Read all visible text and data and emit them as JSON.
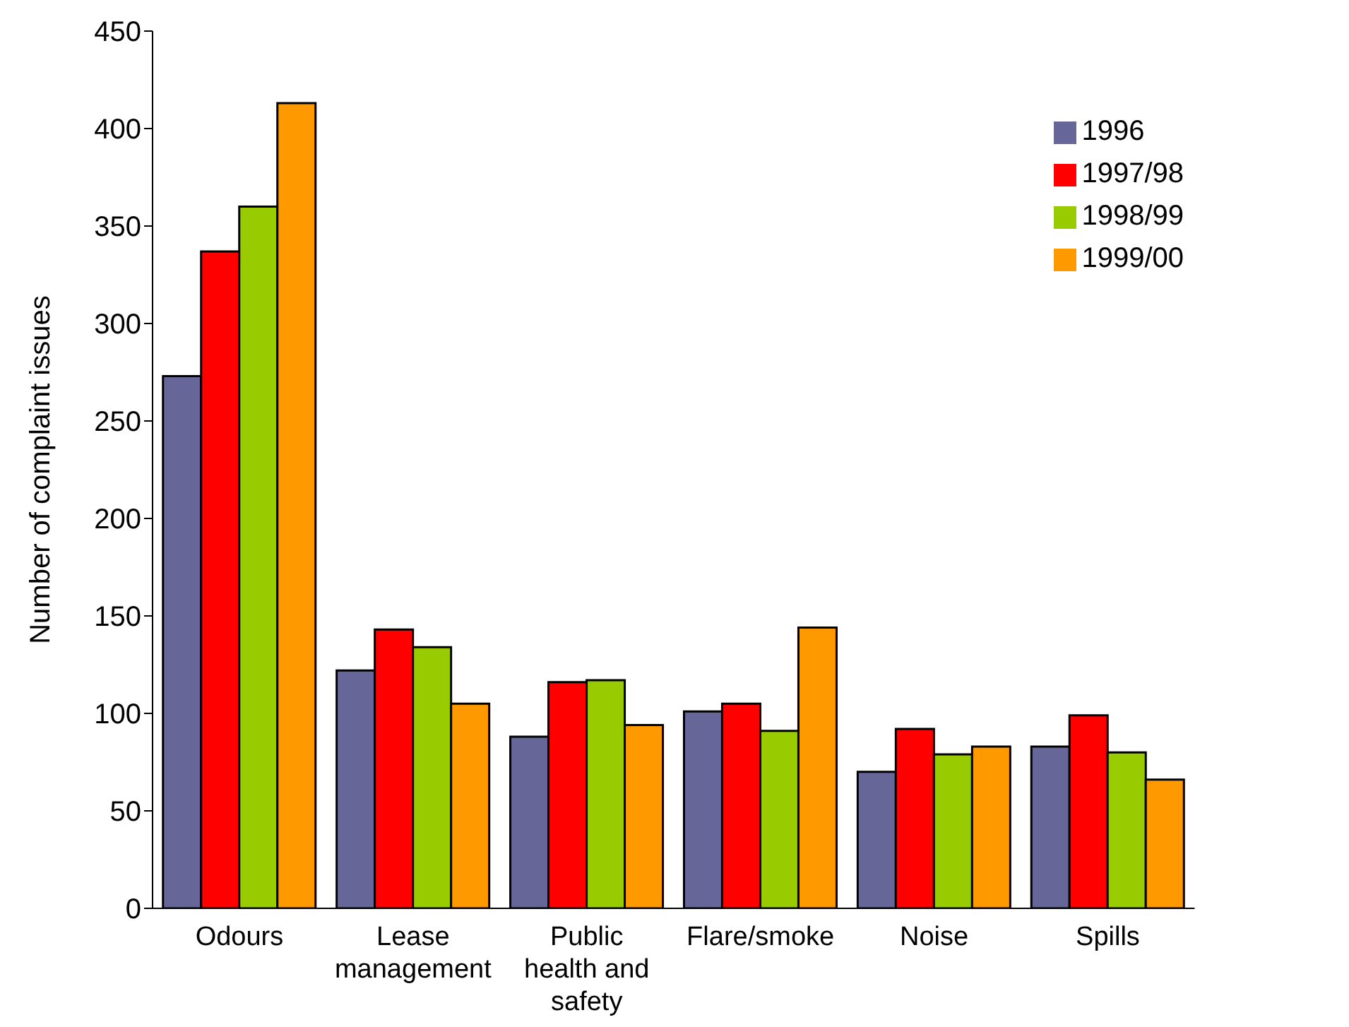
{
  "chart_data": {
    "type": "bar",
    "ylabel": "Number of complaint issues",
    "categories": [
      "Odours",
      "Lease management",
      "Public health and safety",
      "Flare/smoke",
      "Noise",
      "Spills"
    ],
    "series": [
      {
        "name": "1996",
        "color": "#666699",
        "values": [
          273,
          122,
          88,
          101,
          70,
          83
        ]
      },
      {
        "name": "1997/98",
        "color": "#ff0000",
        "values": [
          337,
          143,
          116,
          105,
          92,
          99
        ]
      },
      {
        "name": "1998/99",
        "color": "#99cc00",
        "values": [
          360,
          134,
          117,
          91,
          79,
          80
        ]
      },
      {
        "name": "1999/00",
        "color": "#ff9900",
        "values": [
          413,
          105,
          94,
          144,
          83,
          66
        ]
      }
    ],
    "ylim": [
      0,
      450
    ],
    "yticks": [
      0,
      50,
      100,
      150,
      200,
      250,
      300,
      350,
      400,
      450
    ],
    "grid": false,
    "legend": "top right"
  }
}
